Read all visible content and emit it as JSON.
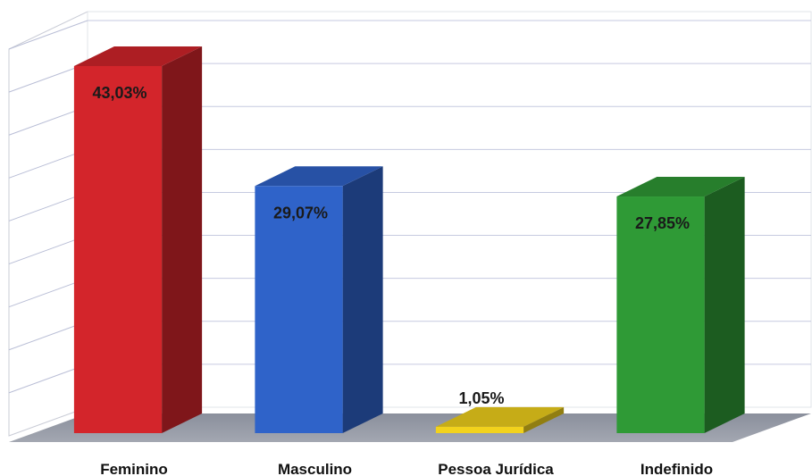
{
  "chart_data": {
    "type": "bar",
    "categories": [
      "Feminino",
      "Masculino",
      "Pessoa Jurídica",
      "Indefinido"
    ],
    "values": [
      43.03,
      29.07,
      1.05,
      27.85
    ],
    "value_labels": [
      "43,03%",
      "29,07%",
      "1,05%",
      "27,85%"
    ],
    "colors": [
      "#d3252b",
      "#2f63c9",
      "#f2d21c",
      "#2f9a36"
    ],
    "ylim": [
      0,
      45
    ],
    "grid": true,
    "style": "3d",
    "title": "",
    "xlabel": "",
    "ylabel": ""
  }
}
